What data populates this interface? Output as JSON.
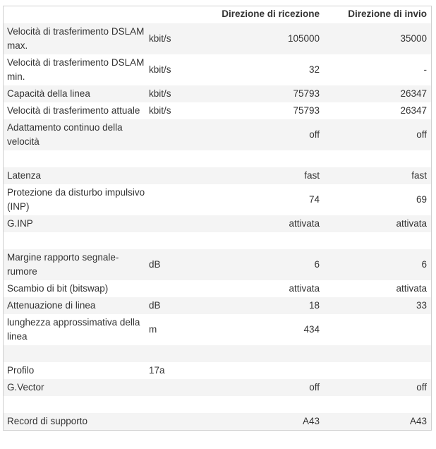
{
  "table": {
    "header": [
      "Direzione di ricezione",
      "Direzione di invio"
    ],
    "rows": [
      [
        "Velocità di trasferimento DSLAM max.",
        "kbit/s",
        "105000",
        "35000"
      ],
      [
        "Velocità di trasferimento DSLAM min.",
        "kbit/s",
        "32",
        "-"
      ],
      [
        "Capacità della linea",
        "kbit/s",
        "75793",
        "26347"
      ],
      [
        "Velocità di trasferimento attuale",
        "kbit/s",
        "75793",
        "26347"
      ],
      [
        "Adattamento continuo della velocità",
        null,
        "off",
        "off"
      ],
      null,
      [
        "Latenza",
        null,
        "fast",
        "fast"
      ],
      [
        "Protezione da disturbo impulsivo (INP)",
        null,
        "74",
        "69"
      ],
      [
        "G.INP",
        null,
        "attivata",
        "attivata"
      ],
      null,
      [
        "Margine rapporto segnale-rumore",
        "dB",
        "6",
        "6"
      ],
      [
        "Scambio di bit (bitswap)",
        null,
        "attivata",
        "attivata"
      ],
      [
        "Attenuazione di linea",
        "dB",
        "18",
        "33"
      ],
      [
        "lunghezza approssimativa della linea",
        "m",
        "434",
        null
      ],
      null,
      [
        "Profilo",
        "17a",
        null,
        null
      ],
      [
        "G.Vector",
        null,
        "off",
        "off"
      ],
      null,
      [
        "Record di supporto",
        null,
        "A43",
        "A43"
      ]
    ]
  }
}
